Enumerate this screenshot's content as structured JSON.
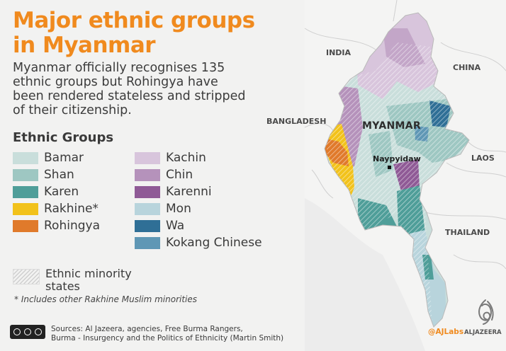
{
  "title": {
    "line1": "Major ethnic groups",
    "line2": "in Myanmar"
  },
  "subtitle": "Myanmar officially recognises 135 ethnic groups but Rohingya have been rendered stateless and stripped of their citizenship.",
  "legend": {
    "title": "Ethnic Groups",
    "column1": [
      {
        "label": "Bamar",
        "color": "#c9dedb"
      },
      {
        "label": "Shan",
        "color": "#9ec7c2"
      },
      {
        "label": "Karen",
        "color": "#4f9e99"
      },
      {
        "label": "Rakhine*",
        "color": "#f2c21b"
      },
      {
        "label": "Rohingya",
        "color": "#e07a2b"
      }
    ],
    "column2": [
      {
        "label": "Kachin",
        "color": "#d8c5dc"
      },
      {
        "label": "Chin",
        "color": "#b592bb"
      },
      {
        "label": "Karenni",
        "color": "#8f5a96"
      },
      {
        "label": "Mon",
        "color": "#b8d4dc"
      },
      {
        "label": "Wa",
        "color": "#2f6f96"
      },
      {
        "label": "Kokang Chinese",
        "color": "#5f97b5"
      }
    ],
    "minority": {
      "line1": "Ethnic minority",
      "line2": "states"
    }
  },
  "footnote": "* Includes other Rakhine Muslim minorities",
  "sources": {
    "line1": "Sources: Al Jazeera, agencies, Free Burma Rangers,",
    "line2": "Burma - Insurgency and the Politics of Ethnicity (Martin Smith)"
  },
  "map": {
    "countries": {
      "india": "INDIA",
      "china": "CHINA",
      "bangladesh": "BANGLADESH",
      "laos": "LAOS",
      "thailand": "THAILAND"
    },
    "myanmar": "MYANMAR",
    "capital": "Naypyidaw"
  },
  "credits": {
    "ajlabs": "@AJLabs",
    "aljazeera": "ALJAZEERA"
  }
}
